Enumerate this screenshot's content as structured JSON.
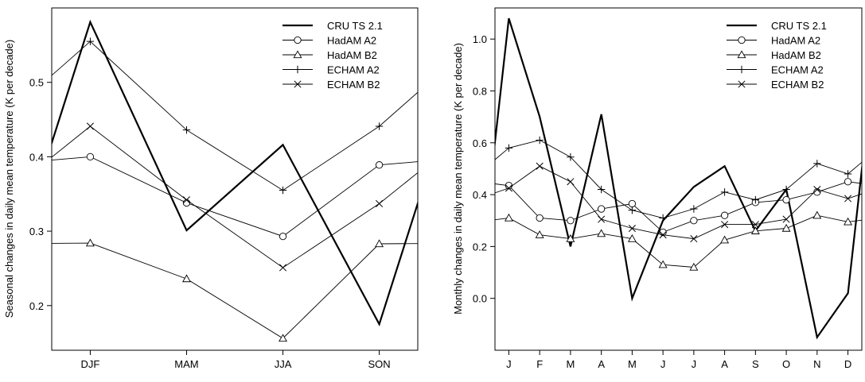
{
  "chart_data": [
    {
      "type": "line",
      "title": "",
      "xlabel": "",
      "ylabel": "Seasonal changes in daily mean temperature (K per decade)",
      "categories": [
        "DJF",
        "MAM",
        "JJA",
        "SON"
      ],
      "xlim": [
        0.6,
        4.4
      ],
      "ylim": [
        0.14,
        0.6
      ],
      "yticks": [
        0.2,
        0.3,
        0.4,
        0.5
      ],
      "ytick_labels": [
        "0.2",
        "0.3",
        "0.4",
        "0.5"
      ],
      "legend_position": "top-right",
      "grid": false,
      "series": [
        {
          "name": "CRU TS 2.1",
          "marker": "none",
          "values": [
            0.581,
            0.301,
            0.416,
            0.175
          ]
        },
        {
          "name": "HadAM A2",
          "marker": "circle",
          "values": [
            0.4,
            0.338,
            0.293,
            0.389
          ]
        },
        {
          "name": "HadAM B2",
          "marker": "triangle",
          "values": [
            0.284,
            0.236,
            0.156,
            0.283
          ]
        },
        {
          "name": "ECHAM A2",
          "marker": "plus",
          "values": [
            0.555,
            0.436,
            0.355,
            0.441
          ]
        },
        {
          "name": "ECHAM B2",
          "marker": "x",
          "values": [
            0.441,
            0.342,
            0.251,
            0.337
          ]
        }
      ]
    },
    {
      "type": "line",
      "title": "",
      "xlabel": "",
      "ylabel": "Monthly changes in daily mean temperature (K per decade)",
      "categories": [
        "J",
        "F",
        "M",
        "A",
        "M",
        "J",
        "J",
        "A",
        "S",
        "O",
        "N",
        "D"
      ],
      "xlim": [
        0.55,
        12.45
      ],
      "ylim": [
        -0.2,
        1.12
      ],
      "yticks": [
        0.0,
        0.2,
        0.4,
        0.6,
        0.8,
        1.0
      ],
      "ytick_labels": [
        "0.0",
        "0.2",
        "0.4",
        "0.6",
        "0.8",
        "1.0"
      ],
      "legend_position": "top-right",
      "grid": false,
      "series": [
        {
          "name": "CRU TS 2.1",
          "marker": "none",
          "values": [
            1.08,
            0.7,
            0.2,
            0.71,
            0.0,
            0.3,
            0.43,
            0.51,
            0.26,
            0.42,
            -0.15,
            0.02
          ]
        },
        {
          "name": "HadAM A2",
          "marker": "circle",
          "values": [
            0.435,
            0.31,
            0.3,
            0.345,
            0.365,
            0.255,
            0.3,
            0.32,
            0.37,
            0.38,
            0.41,
            0.45
          ]
        },
        {
          "name": "HadAM B2",
          "marker": "triangle",
          "values": [
            0.31,
            0.245,
            0.23,
            0.25,
            0.23,
            0.13,
            0.12,
            0.225,
            0.26,
            0.27,
            0.32,
            0.295
          ]
        },
        {
          "name": "ECHAM A2",
          "marker": "plus",
          "values": [
            0.58,
            0.61,
            0.545,
            0.42,
            0.34,
            0.31,
            0.345,
            0.41,
            0.38,
            0.42,
            0.52,
            0.48
          ]
        },
        {
          "name": "ECHAM B2",
          "marker": "x",
          "values": [
            0.425,
            0.51,
            0.45,
            0.305,
            0.27,
            0.245,
            0.23,
            0.285,
            0.285,
            0.305,
            0.42,
            0.385
          ]
        }
      ]
    }
  ]
}
